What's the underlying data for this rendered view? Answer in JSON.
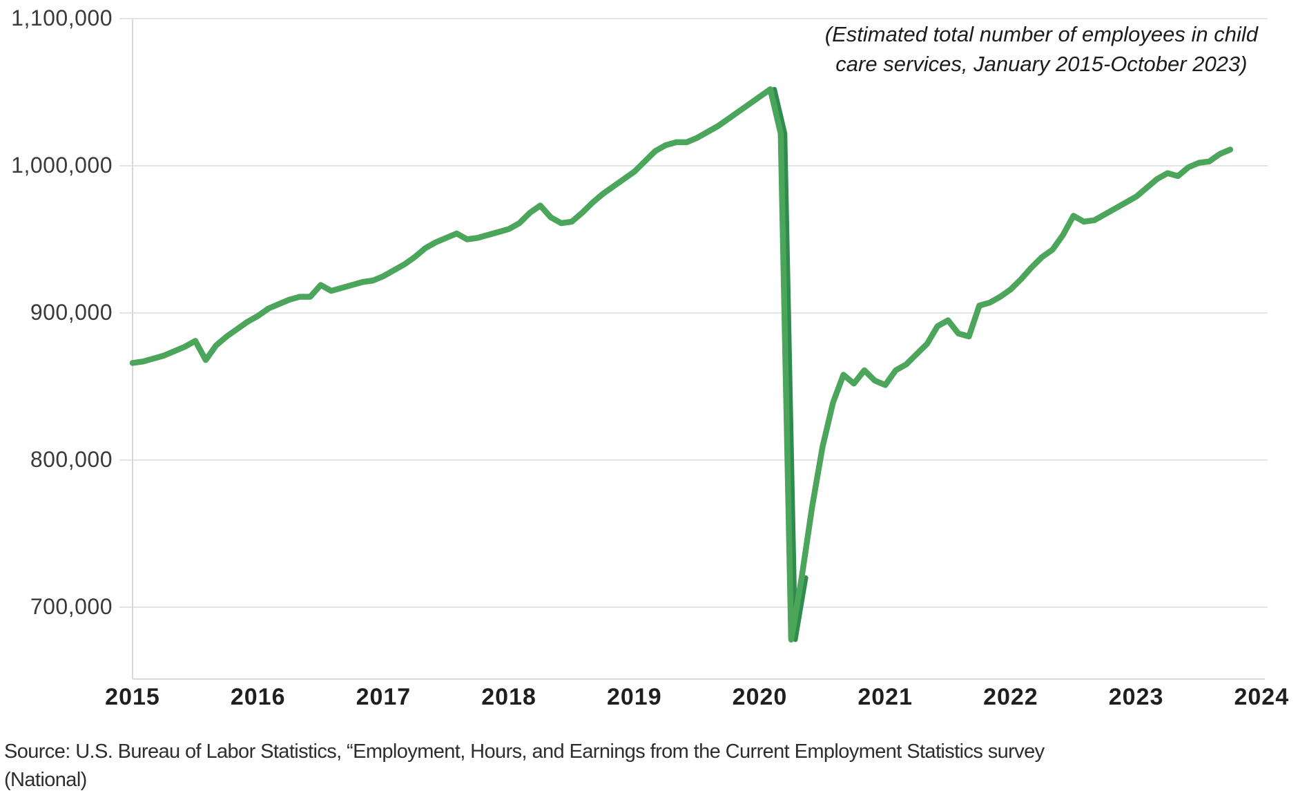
{
  "chart_data": {
    "type": "line",
    "title": "",
    "annotation_lines": [
      "(Estimated total number of employees in child",
      "care services, January 2015-October 2023)"
    ],
    "source_lines": [
      "Source: U.S. Bureau of Labor Statistics, “Employment, Hours, and Earnings from the Current Employment Statistics survey",
      "(National)"
    ],
    "x_tick_labels": [
      "2015",
      "2016",
      "2017",
      "2018",
      "2019",
      "2020",
      "2021",
      "2022",
      "2023",
      "2024"
    ],
    "y_tick_labels": [
      "1,100,000",
      "1,000,000",
      "900,000",
      "800,000",
      "700,000"
    ],
    "y_tick_values": [
      1100000,
      1000000,
      900000,
      800000,
      700000
    ],
    "ylim": [
      650000,
      1100000
    ],
    "x_domain": [
      "2015-01",
      "2024-01"
    ],
    "grid": "horizontal-only",
    "legend": "none",
    "colors": {
      "line_green": "#4BA55A",
      "line_green_dark": "#2F8C4D",
      "gridline": "#E4E4E4",
      "axis": "#D8D8D8",
      "x_label": "#1F1F1F",
      "y_label": "#3A3A3A"
    },
    "series": [
      {
        "name": "Total employees in child care services",
        "frequency": "monthly",
        "start_month": "2015-01",
        "end_month": "2023-10",
        "unit": "employees (thousands)",
        "color": "#4BA55A",
        "values_thousands": [
          866,
          867,
          869,
          871,
          874,
          877,
          881,
          868,
          878,
          884,
          889,
          894,
          898,
          903,
          906,
          909,
          911,
          911,
          919,
          915,
          917,
          919,
          921,
          922,
          925,
          929,
          933,
          938,
          944,
          948,
          951,
          954,
          950,
          951,
          953,
          955,
          957,
          961,
          968,
          973,
          965,
          961,
          962,
          968,
          975,
          981,
          986,
          991,
          996,
          1003,
          1010,
          1014,
          1016,
          1016,
          1019,
          1023,
          1027,
          1032,
          1037,
          1042,
          1047,
          1052,
          1022,
          678,
          720,
          768,
          809,
          839,
          858,
          852,
          861,
          854,
          851,
          861,
          865,
          872,
          879,
          891,
          895,
          886,
          884,
          905,
          907,
          911,
          916,
          923,
          931,
          938,
          943,
          953,
          966,
          962,
          963,
          967,
          971,
          975,
          979,
          985,
          991,
          995,
          993,
          999,
          1002,
          1003,
          1008,
          1011
        ]
      }
    ]
  }
}
